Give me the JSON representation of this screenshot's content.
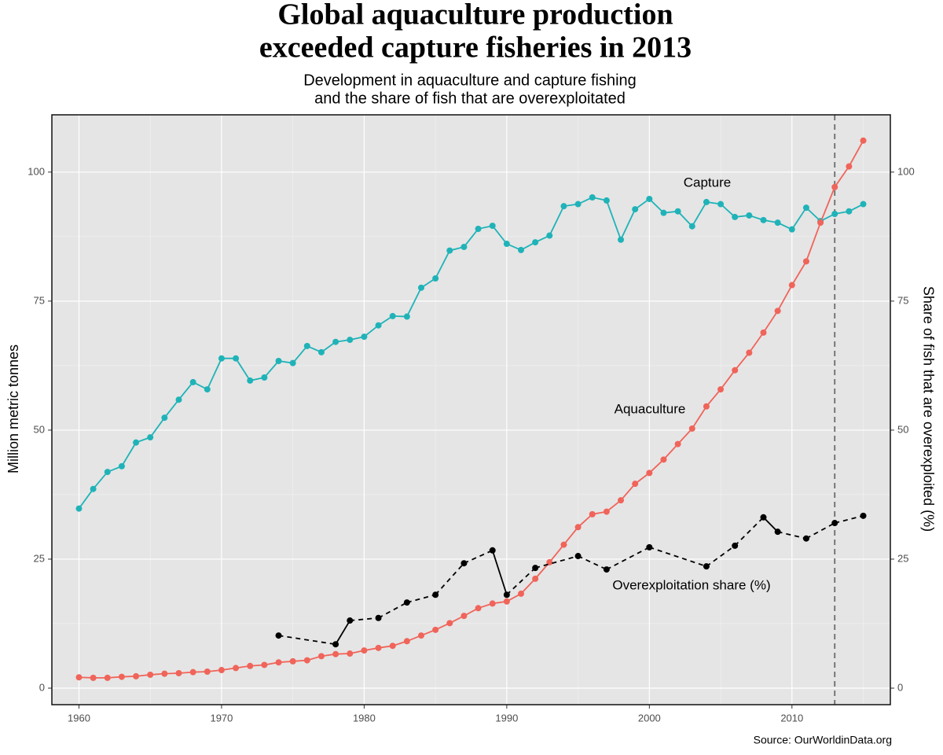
{
  "chart_data": {
    "type": "line",
    "title": [
      "Global aquaculture production",
      "exceeded capture fisheries in 2013"
    ],
    "subtitle": [
      "Development in aquaculture and capture fishing",
      "and the share of fish that are overexploitated"
    ],
    "y_label": "Million metric tonnes",
    "y2_label": "Share of fish that are overexploited (%)",
    "source": "Source: OurWorldinData.org",
    "xlim": [
      1958.1,
      2016.9
    ],
    "xticks": [
      1960,
      1970,
      1980,
      1990,
      2000,
      2010
    ],
    "ylim": [
      -3.2,
      111.1
    ],
    "yticks": [
      0,
      25,
      50,
      75,
      100
    ],
    "y2lim": [
      -3.2,
      111.1
    ],
    "y2ticks": [
      0,
      25,
      50,
      75,
      100
    ],
    "grid": true,
    "vline": 2013,
    "series": [
      {
        "name": "Capture",
        "color": "#1fb3b8",
        "x": [
          1960,
          1961,
          1962,
          1963,
          1964,
          1965,
          1966,
          1967,
          1968,
          1969,
          1970,
          1971,
          1972,
          1973,
          1974,
          1975,
          1976,
          1977,
          1978,
          1979,
          1980,
          1981,
          1982,
          1983,
          1984,
          1985,
          1986,
          1987,
          1988,
          1989,
          1990,
          1991,
          1992,
          1993,
          1994,
          1995,
          1996,
          1997,
          1998,
          1999,
          2000,
          2001,
          2002,
          2003,
          2004,
          2005,
          2006,
          2007,
          2008,
          2009,
          2010,
          2011,
          2012,
          2013,
          2014,
          2015
        ],
        "values": [
          34.8,
          38.6,
          41.9,
          43.0,
          47.6,
          48.6,
          52.4,
          55.9,
          59.3,
          57.9,
          63.9,
          63.9,
          59.6,
          60.2,
          63.4,
          63.0,
          66.3,
          65.1,
          67.1,
          67.5,
          68.1,
          70.3,
          72.1,
          72.0,
          77.6,
          79.4,
          84.8,
          85.5,
          89.0,
          89.6,
          86.1,
          84.9,
          86.4,
          87.7,
          93.4,
          93.8,
          95.1,
          94.5,
          86.9,
          92.8,
          94.8,
          92.1,
          92.4,
          89.5,
          94.2,
          93.8,
          91.3,
          91.6,
          90.7,
          90.2,
          88.9,
          93.1,
          90.5,
          91.9,
          92.4,
          93.8
        ]
      },
      {
        "name": "Aquaculture",
        "color": "#f0645a",
        "x": [
          1960,
          1961,
          1962,
          1963,
          1964,
          1965,
          1966,
          1967,
          1968,
          1969,
          1970,
          1971,
          1972,
          1973,
          1974,
          1975,
          1976,
          1977,
          1978,
          1979,
          1980,
          1981,
          1982,
          1983,
          1984,
          1985,
          1986,
          1987,
          1988,
          1989,
          1990,
          1991,
          1992,
          1993,
          1994,
          1995,
          1996,
          1997,
          1998,
          1999,
          2000,
          2001,
          2002,
          2003,
          2004,
          2005,
          2006,
          2007,
          2008,
          2009,
          2010,
          2011,
          2012,
          2013,
          2014,
          2015
        ],
        "values": [
          2.1,
          2.0,
          2.0,
          2.2,
          2.3,
          2.6,
          2.8,
          2.9,
          3.1,
          3.2,
          3.5,
          3.9,
          4.3,
          4.5,
          5.0,
          5.2,
          5.4,
          6.2,
          6.6,
          6.7,
          7.3,
          7.8,
          8.2,
          9.1,
          10.2,
          11.3,
          12.6,
          14.0,
          15.5,
          16.4,
          16.8,
          18.3,
          21.2,
          24.4,
          27.8,
          31.2,
          33.7,
          34.2,
          36.4,
          39.6,
          41.7,
          44.3,
          47.3,
          50.3,
          54.6,
          57.9,
          61.6,
          65.0,
          68.9,
          73.1,
          78.1,
          82.7,
          90.2,
          97.1,
          101.1,
          106.1
        ]
      },
      {
        "name": "Overexploitation share (%)",
        "color": "#000000",
        "axis": "y2",
        "x": [
          1974,
          1978,
          1979,
          1981,
          1983,
          1985,
          1987,
          1989,
          1990,
          1992,
          1995,
          1997,
          2000,
          2004,
          2006,
          2008,
          2009,
          2011,
          2013,
          2015
        ],
        "values": [
          10.2,
          8.5,
          13.1,
          13.6,
          16.6,
          18.1,
          24.2,
          26.7,
          18.1,
          23.3,
          25.6,
          23.0,
          27.3,
          23.6,
          27.6,
          33.1,
          30.3,
          29.0,
          32.0,
          33.4
        ]
      }
    ]
  }
}
